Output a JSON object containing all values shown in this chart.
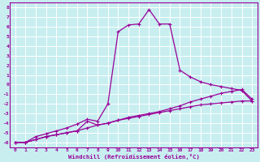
{
  "xlabel": "Windchill (Refroidissement éolien,°C)",
  "bg_color": "#c8eef0",
  "line_color": "#990099",
  "grid_color": "#aadddd",
  "xlim": [
    -0.5,
    23.5
  ],
  "ylim": [
    -6.5,
    8.5
  ],
  "xticks": [
    0,
    1,
    2,
    3,
    4,
    5,
    6,
    7,
    8,
    9,
    10,
    11,
    12,
    13,
    14,
    15,
    16,
    17,
    18,
    19,
    20,
    21,
    22,
    23
  ],
  "yticks": [
    -6,
    -5,
    -4,
    -3,
    -2,
    -1,
    0,
    1,
    2,
    3,
    4,
    5,
    6,
    7,
    8
  ],
  "ytick_labels": [
    "-6",
    "-5",
    "-4",
    "-3",
    "-2",
    "-1",
    "0",
    "1",
    "2",
    "3",
    "4",
    "5",
    "6",
    "7",
    "8"
  ],
  "line1_x": [
    0,
    1,
    2,
    3,
    4,
    5,
    6,
    7,
    8,
    9,
    10,
    11,
    12,
    13,
    14,
    15,
    16,
    17,
    18,
    19,
    20,
    21,
    22,
    23
  ],
  "line1_y": [
    -6,
    -6,
    -5.7,
    -5.4,
    -5.2,
    -5.0,
    -4.8,
    -4.5,
    -4.2,
    -4.0,
    -3.7,
    -3.5,
    -3.3,
    -3.1,
    -2.9,
    -2.7,
    -2.5,
    -2.3,
    -2.1,
    -2.0,
    -1.9,
    -1.8,
    -1.7,
    -1.7
  ],
  "line2_x": [
    0,
    1,
    2,
    3,
    4,
    5,
    6,
    7,
    8,
    9,
    10,
    11,
    12,
    13,
    14,
    15,
    16,
    17,
    18,
    19,
    20,
    21,
    22,
    23
  ],
  "line2_y": [
    -6,
    -6,
    -5.7,
    -5.4,
    -5.2,
    -5.0,
    -4.8,
    -3.8,
    -4.2,
    -4.0,
    -3.7,
    -3.4,
    -3.2,
    -3.0,
    -2.8,
    -2.5,
    -2.2,
    -1.8,
    -1.5,
    -1.2,
    -0.9,
    -0.7,
    -0.5,
    -1.5
  ],
  "line3_x": [
    0,
    1,
    2,
    3,
    4,
    5,
    6,
    7,
    8,
    9,
    10,
    11,
    12,
    13,
    14,
    15,
    16,
    17,
    18,
    19,
    20,
    21,
    22,
    23
  ],
  "line3_y": [
    -6,
    -6,
    -5.4,
    -5.1,
    -4.8,
    -4.5,
    -4.1,
    -3.6,
    -3.8,
    -2.0,
    5.5,
    6.2,
    6.3,
    7.8,
    6.3,
    6.3,
    1.5,
    0.8,
    0.3,
    0.0,
    -0.2,
    -0.4,
    -0.6,
    -1.7
  ]
}
